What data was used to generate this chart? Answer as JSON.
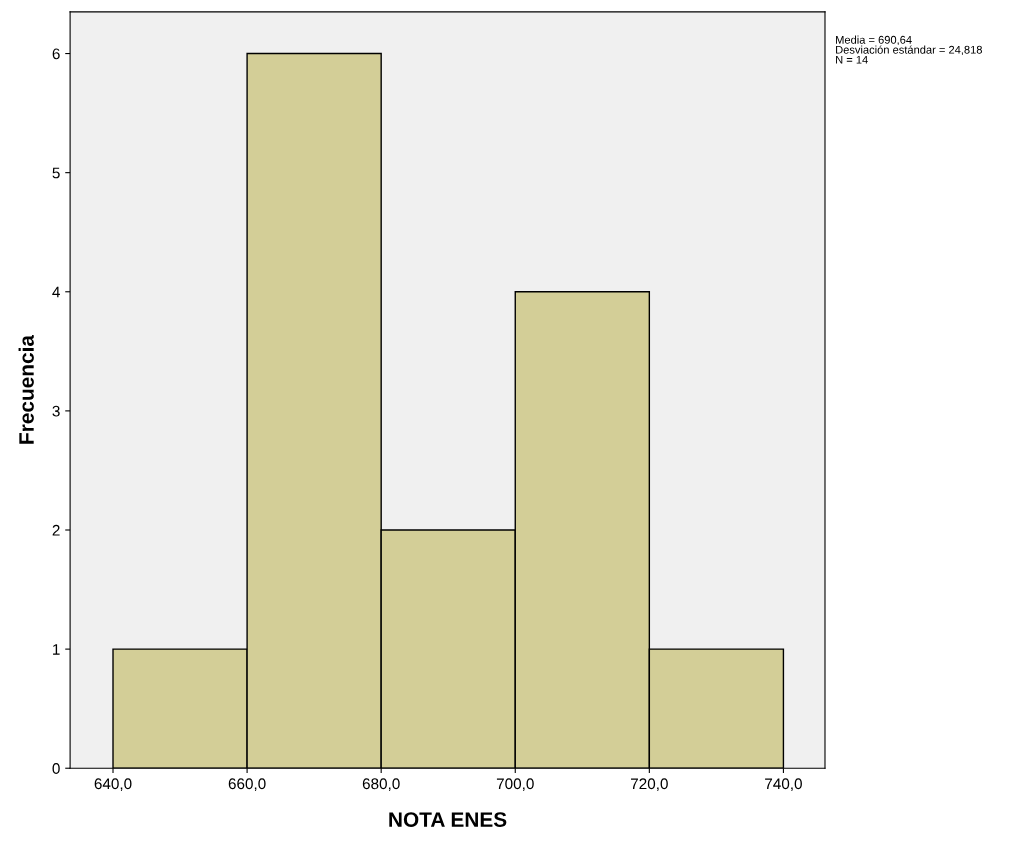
{
  "chart_data": {
    "type": "histogram",
    "xlabel": "NOTA ENES",
    "ylabel": "Frecuencia",
    "bins": [
      640,
      660,
      680,
      700,
      720,
      740
    ],
    "values": [
      1,
      6,
      2,
      4,
      1
    ],
    "color": "#d3ce97",
    "xlim": [
      633.6,
      746.2
    ],
    "ylim": [
      0,
      6.35
    ],
    "xticks": [
      {
        "value": 640,
        "label": "640,0"
      },
      {
        "value": 660,
        "label": "660,0"
      },
      {
        "value": 680,
        "label": "680,0"
      },
      {
        "value": 700,
        "label": "700,0"
      },
      {
        "value": 720,
        "label": "720,0"
      },
      {
        "value": 740,
        "label": "740,0"
      }
    ],
    "yticks": [
      0,
      1,
      2,
      3,
      4,
      5,
      6
    ],
    "annotations": [
      "Media = 690,64\nDesviación estándar = 24,818\nN = 14"
    ],
    "grid": false,
    "legend": false
  }
}
